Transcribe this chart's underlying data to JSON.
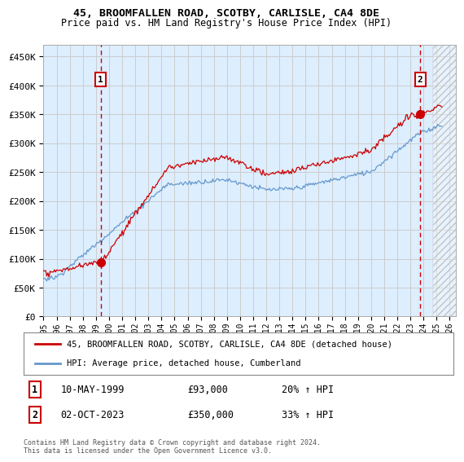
{
  "title1": "45, BROOMFALLEN ROAD, SCOTBY, CARLISLE, CA4 8DE",
  "title2": "Price paid vs. HM Land Registry's House Price Index (HPI)",
  "ylabel_ticks": [
    "£0",
    "£50K",
    "£100K",
    "£150K",
    "£200K",
    "£250K",
    "£300K",
    "£350K",
    "£400K",
    "£450K"
  ],
  "ylim": [
    0,
    470000
  ],
  "xlim_start": 1995.0,
  "xlim_end": 2026.5,
  "sale1_year": 1999.36,
  "sale1_price": 93000,
  "sale1_label": "1",
  "sale1_date": "10-MAY-1999",
  "sale1_pct": "20%",
  "sale2_year": 2023.75,
  "sale2_price": 350000,
  "sale2_label": "2",
  "sale2_date": "02-OCT-2023",
  "sale2_pct": "33%",
  "line_color_red": "#cc0000",
  "line_color_blue": "#6699cc",
  "dashed_color": "#cc0000",
  "grid_color": "#cccccc",
  "plot_bg": "#ddeeff",
  "legend_label_red": "45, BROOMFALLEN ROAD, SCOTBY, CARLISLE, CA4 8DE (detached house)",
  "legend_label_blue": "HPI: Average price, detached house, Cumberland",
  "footnote1": "Contains HM Land Registry data © Crown copyright and database right 2024.",
  "footnote2": "This data is licensed under the Open Government Licence v3.0."
}
